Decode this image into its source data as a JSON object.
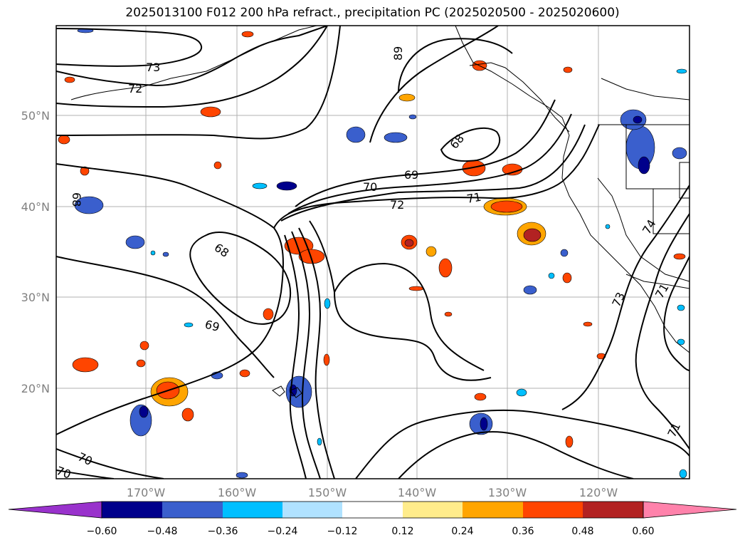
{
  "title": "2025013100 F012 200 hPa refract., precipitation PC (2025020500 - 2025020600)",
  "map": {
    "lat_labels": [
      "50°N",
      "40°N",
      "30°N",
      "20°N"
    ],
    "lon_labels": [
      "170°W",
      "160°W",
      "150°W",
      "140°W",
      "130°W",
      "120°W"
    ],
    "contour_labels": [
      "73",
      "72",
      "68",
      "69",
      "70",
      "72",
      "71",
      "68",
      "68",
      "69",
      "74",
      "73",
      "71",
      "70",
      "70",
      "71",
      "89"
    ]
  },
  "colorbar": {
    "ticks": [
      "−0.60",
      "−0.48",
      "−0.36",
      "−0.24",
      "−0.12",
      "0.12",
      "0.24",
      "0.36",
      "0.48",
      "0.60"
    ],
    "colors": [
      "#9932cc",
      "#00008b",
      "#3a5fcd",
      "#00bfff",
      "#b0e2ff",
      "#ffffff",
      "#ffec8b",
      "#ffa500",
      "#ff4500",
      "#b22222",
      "#ff82ab"
    ]
  },
  "colors": {
    "pos_low": "#ffec8b",
    "pos_mid": "#ffa500",
    "pos_high": "#ff4500",
    "pos_max": "#b22222",
    "neg_low": "#b0e2ff",
    "neg_mid": "#00bfff",
    "neg_high": "#3a5fcd",
    "neg_max": "#00008b"
  }
}
